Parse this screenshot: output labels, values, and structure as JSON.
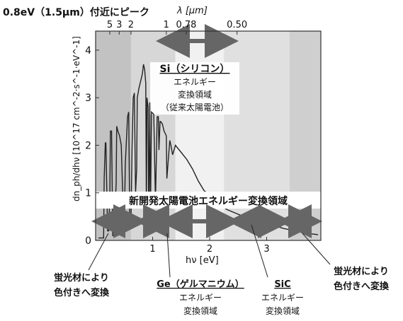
{
  "chart_data": {
    "type": "line",
    "title": "0.8eV（1.5μm）付近にピーク",
    "xlabel": "hν [eV]",
    "ylabel": "dn_ph/dhν [10^17 cm^-2·s^-1·eV^-1]",
    "top_axis_label": "λ [μm]",
    "xlim": [
      0,
      3.95
    ],
    "ylim": [
      0,
      4.4
    ],
    "x_ticks": [
      "1",
      "2",
      "3"
    ],
    "y_ticks": [
      "0",
      "1",
      "2",
      "3",
      "4"
    ],
    "top_ticks": [
      {
        "label": "5",
        "value": 5
      },
      {
        "label": "3",
        "value": 3
      },
      {
        "label": "2",
        "value": 2
      },
      {
        "label": "1",
        "value": 1
      },
      {
        "label": "0.78",
        "value": 0.78
      },
      {
        "label": "0.50",
        "value": 0.5
      }
    ],
    "regions": [
      {
        "from": 0,
        "to": 0.62,
        "shade": "#c2c2c2"
      },
      {
        "from": 0.62,
        "to": 1.4,
        "shade": "#d7d7d7"
      },
      {
        "from": 1.4,
        "to": 2.25,
        "shade": "#f1f1f1"
      },
      {
        "from": 2.25,
        "to": 3.4,
        "shade": "#e0e0e0"
      },
      {
        "from": 3.4,
        "to": 3.95,
        "shade": "#cfcfcf"
      }
    ],
    "series": [
      {
        "x": [
          0.05,
          0.14,
          0.15,
          0.17,
          0.18,
          0.21,
          0.23,
          0.25,
          0.26,
          0.28,
          0.3,
          0.32,
          0.36,
          0.37,
          0.39,
          0.42,
          0.45,
          0.48,
          0.5,
          0.52,
          0.56,
          0.58,
          0.6,
          0.62,
          0.64,
          0.66,
          0.68,
          0.7,
          0.72,
          0.73,
          0.76,
          0.78,
          0.8,
          0.82,
          0.84,
          0.86,
          0.88,
          0.89,
          0.9,
          0.92,
          0.93,
          0.95,
          0.96,
          0.98,
          1.02,
          1.05,
          1.08,
          1.1,
          1.11,
          1.13,
          1.14,
          1.17,
          1.2,
          1.24,
          1.25,
          1.3,
          1.32,
          1.35,
          1.4,
          1.5,
          1.6,
          1.7,
          1.8,
          1.9,
          2.0,
          2.1,
          2.2,
          2.3,
          2.5,
          2.7,
          2.9,
          3.1,
          3.3,
          3.5,
          3.7,
          3.9
        ],
        "y": [
          0.05,
          0.05,
          1.3,
          2.05,
          2.05,
          0.2,
          0.2,
          1.0,
          2.3,
          2.3,
          0.1,
          0.1,
          1.2,
          2.4,
          2.3,
          2.2,
          2.0,
          0.8,
          0.1,
          1.6,
          2.6,
          2.7,
          0.3,
          0.3,
          2.0,
          3.0,
          3.1,
          1.0,
          1.5,
          3.0,
          3.2,
          3.3,
          3.4,
          3.5,
          3.7,
          3.6,
          3.3,
          0.5,
          3.0,
          2.8,
          0.4,
          2.9,
          0.3,
          2.7,
          2.65,
          0.8,
          2.6,
          2.6,
          1.9,
          2.5,
          2.5,
          2.45,
          2.3,
          2.2,
          1.3,
          2.1,
          2.0,
          1.8,
          2.0,
          1.85,
          1.7,
          1.5,
          1.25,
          1.05,
          0.95,
          0.85,
          0.75,
          0.65,
          0.55,
          0.45,
          0.38,
          0.32,
          0.25,
          0.2,
          0.15,
          0.12
        ]
      }
    ]
  },
  "annotations": {
    "si_title": "Si（シリコン）",
    "si_l2": "エネルギー",
    "si_l3": "変換領域",
    "si_l4": "（従来太陽電池）",
    "new_band": "新開発太陽電池エネルギー変換領域",
    "phosphor_left_l1": "蛍光材により",
    "phosphor_left_l2": "色付きへ変換",
    "ge_title": "Ge（ゲルマニウム）",
    "ge_l2": "エネルギー",
    "ge_l3": "変換領域",
    "sic_title": "SiC",
    "sic_l2": "エネルギー",
    "sic_l3": "変換領域",
    "phosphor_right_l1": "蛍光材により",
    "phosphor_right_l2": "色付きへ変換"
  }
}
